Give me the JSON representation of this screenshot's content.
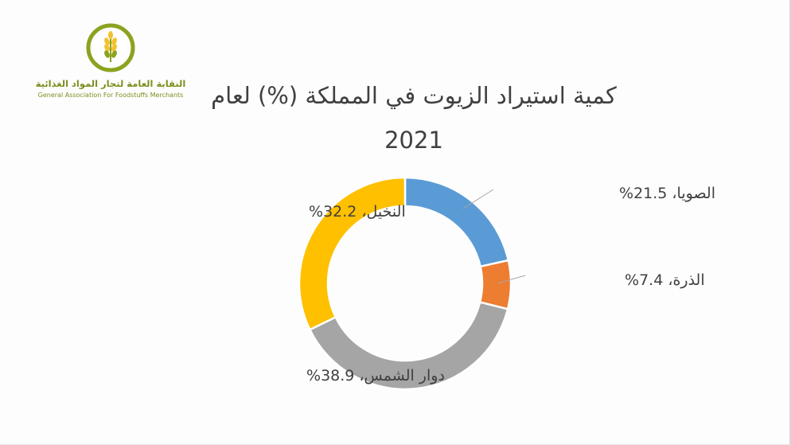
{
  "logo": {
    "arabic_name": "النقابة العامة لتجار المواد الغذائية",
    "english_name": "General Association For Foodstuffs Merchants",
    "icon": "wheat-emblem-icon",
    "colors": {
      "ring": "#8ba31e",
      "grain": "#f2c12e"
    }
  },
  "title": {
    "line1": "كمية استيراد الزيوت في المملكة (%) لعام",
    "line2": "2021"
  },
  "chart_data": {
    "type": "pie",
    "variant": "doughnut",
    "title": "كمية استيراد الزيوت في المملكة (%) لعام 2021",
    "slices": [
      {
        "name": "الصويا",
        "value": 21.5,
        "label": "الصويا، 21.5%",
        "color": "#5b9bd5"
      },
      {
        "name": "الذرة",
        "value": 7.4,
        "label": "الذرة، 7.4%",
        "color": "#ed7d31"
      },
      {
        "name": "دوار الشمس",
        "value": 38.9,
        "label": "دوار الشمس، 38.9%",
        "color": "#a5a5a5"
      },
      {
        "name": "النخيل",
        "value": 32.2,
        "label": "النخيل، 32.2%",
        "color": "#ffc000"
      }
    ],
    "legend": "none",
    "start_angle": "top, clockwise"
  }
}
